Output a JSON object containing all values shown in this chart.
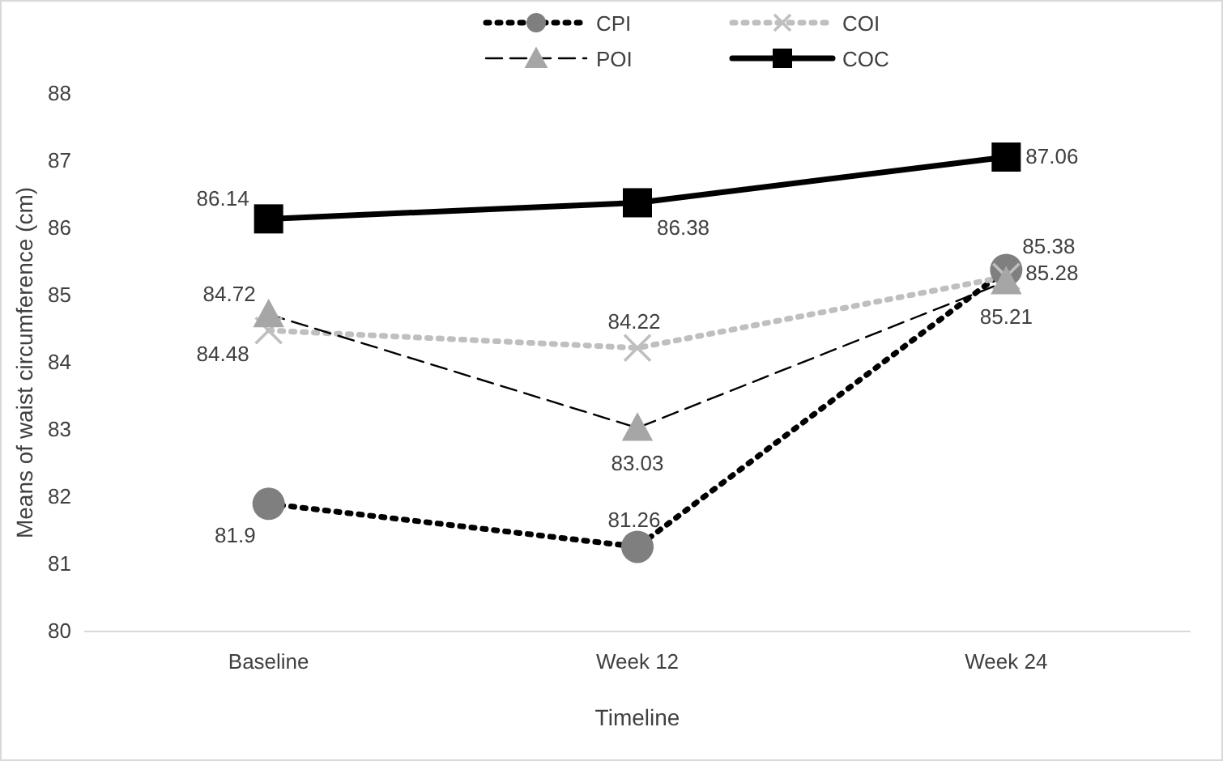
{
  "chart_data": {
    "type": "line",
    "xlabel": "Timeline",
    "ylabel": "Means of waist circumference (cm)",
    "categories": [
      "Baseline",
      "Week 12",
      "Week 24"
    ],
    "series": [
      {
        "name": "CPI",
        "color": "#7f7f7f",
        "values": [
          81.9,
          81.26,
          85.38
        ],
        "marker": "circle",
        "line_style": "dotted"
      },
      {
        "name": "COI",
        "color": "#bfbfbf",
        "values": [
          84.48,
          84.22,
          85.28
        ],
        "marker": "cross",
        "line_style": "dotted"
      },
      {
        "name": "POI",
        "color": "#a6a6a6",
        "values": [
          84.72,
          83.03,
          85.21
        ],
        "marker": "triangle",
        "line_style": "dashed"
      },
      {
        "name": "COC",
        "color": "#000000",
        "values": [
          86.14,
          86.38,
          87.06
        ],
        "marker": "square",
        "line_style": "solid"
      }
    ],
    "ylim": [
      80,
      88
    ],
    "yticks": [
      80,
      81,
      82,
      83,
      84,
      85,
      86,
      87,
      88
    ],
    "grid": false,
    "legend": "top",
    "data_labels": true
  }
}
